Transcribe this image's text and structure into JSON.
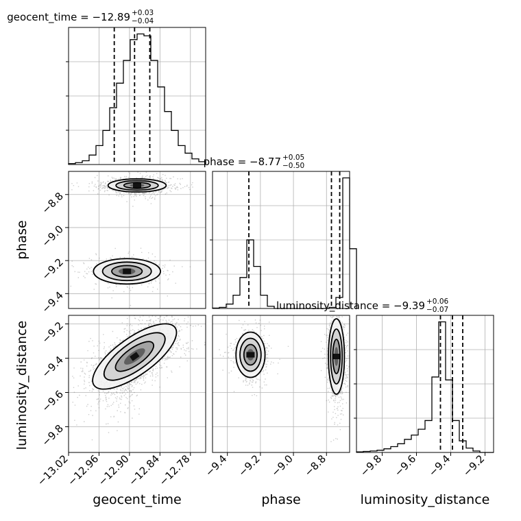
{
  "chart_data": {
    "type": "corner",
    "parameters": [
      "geocent_time",
      "phase",
      "luminosity_distance"
    ],
    "titles": [
      {
        "param": "geocent_time",
        "label": "geocent_time = −12.89",
        "plus": "+0.03",
        "minus": "−0.04",
        "median": -12.89,
        "lo": -12.93,
        "hi": -12.86
      },
      {
        "param": "phase",
        "label": "phase = −8.77",
        "plus": "+0.05",
        "minus": "−0.50",
        "median": -8.77,
        "lo": -9.27,
        "hi": -8.72
      },
      {
        "param": "luminosity_distance",
        "label": "luminosity_distance = −9.39",
        "plus": "+0.06",
        "minus": "−0.07",
        "median": -9.39,
        "lo": -9.46,
        "hi": -9.33
      }
    ],
    "ranges": {
      "geocent_time": [
        -13.02,
        -12.75
      ],
      "phase": [
        -9.49,
        -8.66
      ],
      "luminosity_distance": [
        -9.95,
        -9.15
      ]
    },
    "ticks": {
      "geocent_time": [
        "−13.02",
        "−12.96",
        "−12.90",
        "−12.84",
        "−12.78"
      ],
      "phase": [
        "−9.4",
        "−9.2",
        "−9.0",
        "−8.8"
      ],
      "luminosity_distance": [
        "−9.8",
        "−9.6",
        "−9.4",
        "−9.2"
      ]
    },
    "tick_values": {
      "geocent_time": [
        -13.02,
        -12.96,
        -12.9,
        -12.84,
        -12.78
      ],
      "phase": [
        -9.4,
        -9.2,
        -9.0,
        -8.8
      ],
      "luminosity_distance": [
        -9.8,
        -9.6,
        -9.4,
        -9.2
      ]
    },
    "axis_labels": {
      "x": [
        "geocent_time",
        "phase",
        "luminosity_distance"
      ],
      "y": [
        "phase",
        "luminosity_distance"
      ]
    },
    "histograms": {
      "geocent_time": {
        "start": -13.02,
        "step": 0.0135,
        "counts": [
          0.5,
          1,
          2,
          5,
          10,
          18,
          30,
          43,
          55,
          66,
          69,
          68,
          55,
          41,
          28,
          18,
          10,
          6,
          3,
          1.5
        ]
      },
      "phase": {
        "start": -9.49,
        "step": 0.0415,
        "counts": [
          0.2,
          0.5,
          2,
          6,
          14,
          31,
          19,
          6,
          1,
          0,
          0,
          0,
          0,
          0,
          0,
          0,
          0,
          0.5,
          5,
          59,
          27
        ]
      },
      "luminosity_distance": {
        "start": -9.95,
        "step": 0.04,
        "counts": [
          0.4,
          0.7,
          1,
          1.5,
          2.5,
          4,
          6,
          9,
          12,
          16,
          22,
          52,
          90,
          50,
          22,
          8,
          3,
          1,
          0,
          0
        ]
      }
    },
    "modes_2d": {
      "phase_vs_geocent_time": [
        {
          "x": -12.885,
          "y": -8.745,
          "sx": 0.026,
          "sy": 0.018,
          "rho": 0,
          "weight": 0.68
        },
        {
          "x": -12.905,
          "y": -9.265,
          "sx": 0.03,
          "sy": 0.035,
          "rho": 0,
          "weight": 0.32
        }
      ],
      "luminosity_distance_vs_geocent_time": [
        {
          "x": -12.89,
          "y": -9.39,
          "sx": 0.033,
          "sy": 0.09,
          "rho": 0.65,
          "weight": 1.0
        }
      ],
      "luminosity_distance_vs_phase": [
        {
          "x": -8.74,
          "y": -9.39,
          "sx": 0.022,
          "sy": 0.1,
          "rho": 0,
          "weight": 0.66
        },
        {
          "x": -9.26,
          "y": -9.38,
          "sx": 0.04,
          "sy": 0.06,
          "rho": 0,
          "weight": 0.34
        }
      ]
    },
    "grid": true,
    "quantile_lines": "dashed"
  },
  "colors": {
    "hist": "#000000",
    "grid": "#b0b0b0",
    "scatter": "#6e6e6e",
    "contour": "#000000"
  }
}
